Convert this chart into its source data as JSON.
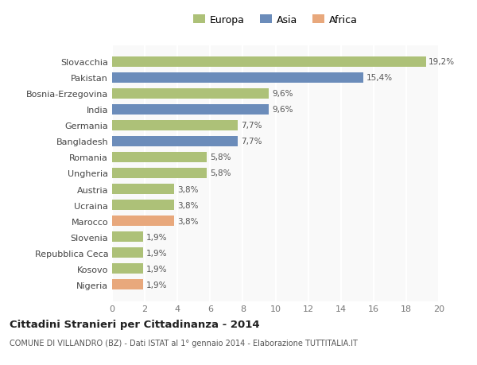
{
  "categories": [
    "Nigeria",
    "Kosovo",
    "Repubblica Ceca",
    "Slovenia",
    "Marocco",
    "Ucraina",
    "Austria",
    "Ungheria",
    "Romania",
    "Bangladesh",
    "Germania",
    "India",
    "Bosnia-Erzegovina",
    "Pakistan",
    "Slovacchia"
  ],
  "values": [
    1.9,
    1.9,
    1.9,
    1.9,
    3.8,
    3.8,
    3.8,
    5.8,
    5.8,
    7.7,
    7.7,
    9.6,
    9.6,
    15.4,
    19.2
  ],
  "colors": [
    "#e8a87c",
    "#adc178",
    "#adc178",
    "#adc178",
    "#e8a87c",
    "#adc178",
    "#adc178",
    "#adc178",
    "#adc178",
    "#6b8cba",
    "#adc178",
    "#6b8cba",
    "#adc178",
    "#6b8cba",
    "#adc178"
  ],
  "labels": [
    "1,9%",
    "1,9%",
    "1,9%",
    "1,9%",
    "3,8%",
    "3,8%",
    "3,8%",
    "5,8%",
    "5,8%",
    "7,7%",
    "7,7%",
    "9,6%",
    "9,6%",
    "15,4%",
    "19,2%"
  ],
  "legend_labels": [
    "Europa",
    "Asia",
    "Africa"
  ],
  "legend_colors": [
    "#adc178",
    "#6b8cba",
    "#e8a87c"
  ],
  "title": "Cittadini Stranieri per Cittadinanza - 2014",
  "subtitle": "COMUNE DI VILLANDRO (BZ) - Dati ISTAT al 1° gennaio 2014 - Elaborazione TUTTITALIA.IT",
  "xlim": [
    0,
    20
  ],
  "xticks": [
    0,
    2,
    4,
    6,
    8,
    10,
    12,
    14,
    16,
    18,
    20
  ],
  "bg_color": "#ffffff",
  "plot_bg_color": "#f9f9f9"
}
